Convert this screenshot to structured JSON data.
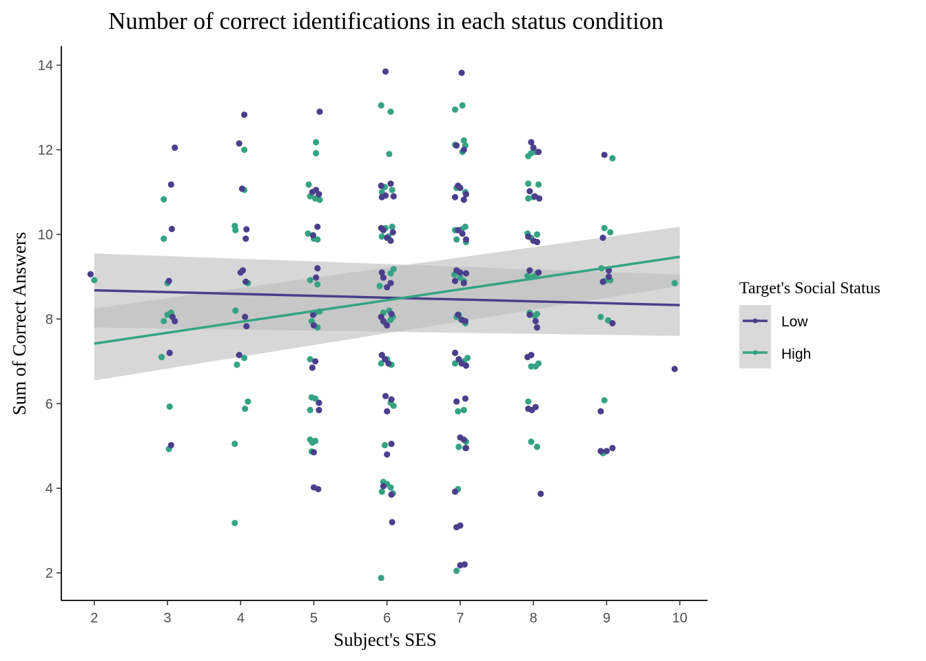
{
  "chart_data": {
    "type": "scatter",
    "title": "Number of correct identifications in each status condition",
    "xlabel": "Subject's SES",
    "ylabel": "Sum of Correct Answers",
    "xlim": [
      1.55,
      10.38
    ],
    "ylim": [
      1.35,
      14.45
    ],
    "x_ticks": [
      2,
      3,
      4,
      5,
      6,
      7,
      8,
      9,
      10
    ],
    "y_ticks": [
      2,
      4,
      6,
      8,
      10,
      12,
      14
    ],
    "grid": false,
    "legend": {
      "title": "Target's Social Status",
      "position": "right",
      "entries": [
        "Low",
        "High"
      ]
    },
    "colors": {
      "Low": "#4b3f8c",
      "High": "#35a383",
      "ribbon": "#bdbdbd"
    },
    "series": [
      {
        "name": "Low",
        "color": "#4b3f8c",
        "fit": {
          "x": [
            2,
            10
          ],
          "y": [
            8.68,
            8.33
          ]
        },
        "ci_band": {
          "x": [
            2,
            10
          ],
          "lower": [
            7.8,
            7.6
          ],
          "upper": [
            9.55,
            9.05
          ]
        },
        "points": [
          [
            1.95,
            9.06
          ],
          [
            3.02,
            8.9
          ],
          [
            3.05,
            11.18
          ],
          [
            3.07,
            8.05
          ],
          [
            3.06,
            10.13
          ],
          [
            3.1,
            12.05
          ],
          [
            3.03,
            7.2
          ],
          [
            3.05,
            5.02
          ],
          [
            3.1,
            7.95
          ],
          [
            3.98,
            12.15
          ],
          [
            4.02,
            11.08
          ],
          [
            4.05,
            12.83
          ],
          [
            4.08,
            10.12
          ],
          [
            4.07,
            9.9
          ],
          [
            4.0,
            9.1
          ],
          [
            4.03,
            9.15
          ],
          [
            4.07,
            8.88
          ],
          [
            4.06,
            8.05
          ],
          [
            4.08,
            7.83
          ],
          [
            3.98,
            7.15
          ],
          [
            5.08,
            12.9
          ],
          [
            4.98,
            11.0
          ],
          [
            5.03,
            11.05
          ],
          [
            5.07,
            10.95
          ],
          [
            5.05,
            10.18
          ],
          [
            4.99,
            9.98
          ],
          [
            5.05,
            9.2
          ],
          [
            5.03,
            8.98
          ],
          [
            4.99,
            8.1
          ],
          [
            5.0,
            7.85
          ],
          [
            5.02,
            7.0
          ],
          [
            4.98,
            6.85
          ],
          [
            5.07,
            6.02
          ],
          [
            5.07,
            5.85
          ],
          [
            5.0,
            4.85
          ],
          [
            5.0,
            4.02
          ],
          [
            5.06,
            3.98
          ],
          [
            5.98,
            13.85
          ],
          [
            5.92,
            11.15
          ],
          [
            6.05,
            11.2
          ],
          [
            5.93,
            10.88
          ],
          [
            5.98,
            10.92
          ],
          [
            6.09,
            10.9
          ],
          [
            5.92,
            10.15
          ],
          [
            5.95,
            10.1
          ],
          [
            6.0,
            9.92
          ],
          [
            6.05,
            9.85
          ],
          [
            6.08,
            10.05
          ],
          [
            5.93,
            9.1
          ],
          [
            5.95,
            8.98
          ],
          [
            6.05,
            8.85
          ],
          [
            6.0,
            8.75
          ],
          [
            5.92,
            8.05
          ],
          [
            5.95,
            7.95
          ],
          [
            6.06,
            8.12
          ],
          [
            6.0,
            7.85
          ],
          [
            5.93,
            7.15
          ],
          [
            5.97,
            7.05
          ],
          [
            6.02,
            6.95
          ],
          [
            5.98,
            6.18
          ],
          [
            6.06,
            6.1
          ],
          [
            6.0,
            5.82
          ],
          [
            6.06,
            5.05
          ],
          [
            6.0,
            4.8
          ],
          [
            5.95,
            4.05
          ],
          [
            6.06,
            3.85
          ],
          [
            6.07,
            3.2
          ],
          [
            7.02,
            13.82
          ],
          [
            6.95,
            12.1
          ],
          [
            7.05,
            12.0
          ],
          [
            6.97,
            11.15
          ],
          [
            7.0,
            11.1
          ],
          [
            7.08,
            10.95
          ],
          [
            6.93,
            10.88
          ],
          [
            7.05,
            10.82
          ],
          [
            6.97,
            10.1
          ],
          [
            7.03,
            10.02
          ],
          [
            7.08,
            9.88
          ],
          [
            6.95,
            9.15
          ],
          [
            7.0,
            9.1
          ],
          [
            7.08,
            9.08
          ],
          [
            6.93,
            8.9
          ],
          [
            7.05,
            8.85
          ],
          [
            6.97,
            8.1
          ],
          [
            7.02,
            7.98
          ],
          [
            7.07,
            7.95
          ],
          [
            6.93,
            7.2
          ],
          [
            6.98,
            7.05
          ],
          [
            7.02,
            6.95
          ],
          [
            7.08,
            6.9
          ],
          [
            6.95,
            6.05
          ],
          [
            7.07,
            6.12
          ],
          [
            7.0,
            5.2
          ],
          [
            7.05,
            5.15
          ],
          [
            7.08,
            4.95
          ],
          [
            6.93,
            3.92
          ],
          [
            6.95,
            3.08
          ],
          [
            7.0,
            3.12
          ],
          [
            7.0,
            2.18
          ],
          [
            7.06,
            2.2
          ],
          [
            7.97,
            12.18
          ],
          [
            8.0,
            12.05
          ],
          [
            8.07,
            11.95
          ],
          [
            7.95,
            11.02
          ],
          [
            8.02,
            10.9
          ],
          [
            8.08,
            10.85
          ],
          [
            7.93,
            9.95
          ],
          [
            8.0,
            9.85
          ],
          [
            8.05,
            9.82
          ],
          [
            7.95,
            9.15
          ],
          [
            8.07,
            9.1
          ],
          [
            7.95,
            8.1
          ],
          [
            8.03,
            7.95
          ],
          [
            8.05,
            7.8
          ],
          [
            7.92,
            7.1
          ],
          [
            7.97,
            7.15
          ],
          [
            7.93,
            5.88
          ],
          [
            7.98,
            5.85
          ],
          [
            8.03,
            5.92
          ],
          [
            8.1,
            3.87
          ],
          [
            8.97,
            11.88
          ],
          [
            8.95,
            9.92
          ],
          [
            9.03,
            9.15
          ],
          [
            9.03,
            9.0
          ],
          [
            8.95,
            8.88
          ],
          [
            9.08,
            7.9
          ],
          [
            8.92,
            5.82
          ],
          [
            8.92,
            4.88
          ],
          [
            9.0,
            4.88
          ],
          [
            9.08,
            4.95
          ],
          [
            9.93,
            6.82
          ]
        ]
      },
      {
        "name": "High",
        "color": "#35a383",
        "fit": {
          "x": [
            2,
            10
          ],
          "y": [
            7.42,
            9.47
          ]
        },
        "ci_band": {
          "x": [
            2,
            10
          ],
          "lower": [
            6.55,
            8.78
          ],
          "upper": [
            8.25,
            10.18
          ]
        },
        "points": [
          [
            2.0,
            8.92
          ],
          [
            2.95,
            10.83
          ],
          [
            2.95,
            9.9
          ],
          [
            3.0,
            8.85
          ],
          [
            3.0,
            8.1
          ],
          [
            3.05,
            8.15
          ],
          [
            2.95,
            7.95
          ],
          [
            2.92,
            7.1
          ],
          [
            3.03,
            5.93
          ],
          [
            3.02,
            4.93
          ],
          [
            3.92,
            10.2
          ],
          [
            3.93,
            10.1
          ],
          [
            4.05,
            12.0
          ],
          [
            4.05,
            11.05
          ],
          [
            4.1,
            8.85
          ],
          [
            3.93,
            8.2
          ],
          [
            3.95,
            6.92
          ],
          [
            4.05,
            7.08
          ],
          [
            4.1,
            6.05
          ],
          [
            4.06,
            5.88
          ],
          [
            3.92,
            5.05
          ],
          [
            3.92,
            3.18
          ],
          [
            5.03,
            12.18
          ],
          [
            5.03,
            11.92
          ],
          [
            4.93,
            11.18
          ],
          [
            4.95,
            10.9
          ],
          [
            5.02,
            10.85
          ],
          [
            5.08,
            10.82
          ],
          [
            4.92,
            10.02
          ],
          [
            5.0,
            9.9
          ],
          [
            5.05,
            9.88
          ],
          [
            4.95,
            8.92
          ],
          [
            5.05,
            8.82
          ],
          [
            5.02,
            8.15
          ],
          [
            5.08,
            8.18
          ],
          [
            4.97,
            7.95
          ],
          [
            5.05,
            7.8
          ],
          [
            4.95,
            7.05
          ],
          [
            4.97,
            6.15
          ],
          [
            5.02,
            6.12
          ],
          [
            4.95,
            5.85
          ],
          [
            4.95,
            5.15
          ],
          [
            5.02,
            5.12
          ],
          [
            4.98,
            5.08
          ],
          [
            4.97,
            4.87
          ],
          [
            5.92,
            13.05
          ],
          [
            6.05,
            12.9
          ],
          [
            6.03,
            11.9
          ],
          [
            5.97,
            11.12
          ],
          [
            6.07,
            11.05
          ],
          [
            5.93,
            11.0
          ],
          [
            5.98,
            10.15
          ],
          [
            6.07,
            10.18
          ],
          [
            5.93,
            9.95
          ],
          [
            6.02,
            9.95
          ],
          [
            6.09,
            9.18
          ],
          [
            5.9,
            8.78
          ],
          [
            6.05,
            9.08
          ],
          [
            5.95,
            8.15
          ],
          [
            6.03,
            8.2
          ],
          [
            6.08,
            8.05
          ],
          [
            5.98,
            7.9
          ],
          [
            6.05,
            7.98
          ],
          [
            5.92,
            6.95
          ],
          [
            6.0,
            7.05
          ],
          [
            6.06,
            6.92
          ],
          [
            6.05,
            6.02
          ],
          [
            6.09,
            5.95
          ],
          [
            5.97,
            5.02
          ],
          [
            5.95,
            4.15
          ],
          [
            6.0,
            4.1
          ],
          [
            6.05,
            4.02
          ],
          [
            5.93,
            3.92
          ],
          [
            6.08,
            3.88
          ],
          [
            5.92,
            1.88
          ],
          [
            6.93,
            12.95
          ],
          [
            7.03,
            13.05
          ],
          [
            6.93,
            12.12
          ],
          [
            7.05,
            12.22
          ],
          [
            7.07,
            12.1
          ],
          [
            7.03,
            11.95
          ],
          [
            6.95,
            11.1
          ],
          [
            7.07,
            11.0
          ],
          [
            6.93,
            10.1
          ],
          [
            7.02,
            10.12
          ],
          [
            7.07,
            10.18
          ],
          [
            6.95,
            9.88
          ],
          [
            7.08,
            9.82
          ],
          [
            6.92,
            9.05
          ],
          [
            7.0,
            8.98
          ],
          [
            7.05,
            8.9
          ],
          [
            6.95,
            8.05
          ],
          [
            6.98,
            8.1
          ],
          [
            7.03,
            7.98
          ],
          [
            7.07,
            7.9
          ],
          [
            6.93,
            6.95
          ],
          [
            7.05,
            7.0
          ],
          [
            7.1,
            7.08
          ],
          [
            6.97,
            5.82
          ],
          [
            7.05,
            5.85
          ],
          [
            7.08,
            5.1
          ],
          [
            6.98,
            4.98
          ],
          [
            7.07,
            4.95
          ],
          [
            6.97,
            3.98
          ],
          [
            6.95,
            2.05
          ],
          [
            7.93,
            11.85
          ],
          [
            7.97,
            11.92
          ],
          [
            8.03,
            11.95
          ],
          [
            7.93,
            11.2
          ],
          [
            8.07,
            11.18
          ],
          [
            7.93,
            10.85
          ],
          [
            8.0,
            10.88
          ],
          [
            7.92,
            10.02
          ],
          [
            7.97,
            9.92
          ],
          [
            8.05,
            10.0
          ],
          [
            7.92,
            9.02
          ],
          [
            8.0,
            9.0
          ],
          [
            8.05,
            9.08
          ],
          [
            7.95,
            8.15
          ],
          [
            8.02,
            8.08
          ],
          [
            8.05,
            8.12
          ],
          [
            7.97,
            6.88
          ],
          [
            8.07,
            6.95
          ],
          [
            8.03,
            6.88
          ],
          [
            7.93,
            6.05
          ],
          [
            7.97,
            5.1
          ],
          [
            8.05,
            4.98
          ],
          [
            8.97,
            10.15
          ],
          [
            9.05,
            10.05
          ],
          [
            8.93,
            9.2
          ],
          [
            8.98,
            8.9
          ],
          [
            9.05,
            8.92
          ],
          [
            8.92,
            8.05
          ],
          [
            9.02,
            7.97
          ],
          [
            8.97,
            6.08
          ],
          [
            8.95,
            4.83
          ],
          [
            9.08,
            11.8
          ],
          [
            9.93,
            8.85
          ]
        ]
      }
    ]
  }
}
